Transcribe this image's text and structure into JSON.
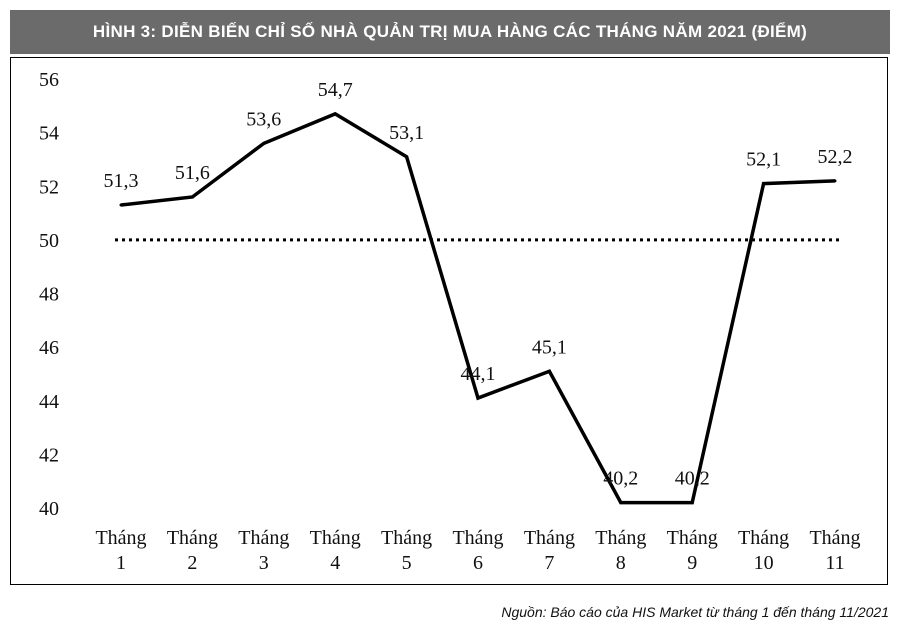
{
  "title": "HÌNH 3: DIỄN BIẾN CHỈ SỐ NHÀ QUẢN TRỊ MUA HÀNG CÁC THÁNG NĂM 2021 (ĐIỂM)",
  "source": "Nguồn: Báo cáo của HIS Market từ tháng 1 đến tháng 11/2021",
  "chart_data": {
    "type": "line",
    "title": "HÌNH 3: DIỄN BIẾN CHỈ SỐ NHÀ QUẢN TRỊ MUA HÀNG CÁC THÁNG NĂM 2021 (ĐIỂM)",
    "categories": [
      [
        "Tháng",
        "1"
      ],
      [
        "Tháng",
        "2"
      ],
      [
        "Tháng",
        "3"
      ],
      [
        "Tháng",
        "4"
      ],
      [
        "Tháng",
        "5"
      ],
      [
        "Tháng",
        "6"
      ],
      [
        "Tháng",
        "7"
      ],
      [
        "Tháng",
        "8"
      ],
      [
        "Tháng",
        "9"
      ],
      [
        "Tháng",
        "10"
      ],
      [
        "Tháng",
        "11"
      ]
    ],
    "values": [
      51.3,
      51.6,
      53.6,
      54.7,
      53.1,
      44.1,
      45.1,
      40.2,
      40.2,
      52.1,
      52.2
    ],
    "data_labels": [
      "51,3",
      "51,6",
      "53,6",
      "54,7",
      "53,1",
      "44,1",
      "45,1",
      "40,2",
      "40,2",
      "52,1",
      "52,2"
    ],
    "reference_line": {
      "value": 50,
      "style": "dotted"
    },
    "ylim": [
      40,
      56
    ],
    "yticks": [
      "40",
      "42",
      "44",
      "46",
      "48",
      "50",
      "52",
      "54",
      "56"
    ],
    "xlabel": "",
    "ylabel": "",
    "grid": false,
    "legend": "none",
    "line_color": "#000000"
  }
}
